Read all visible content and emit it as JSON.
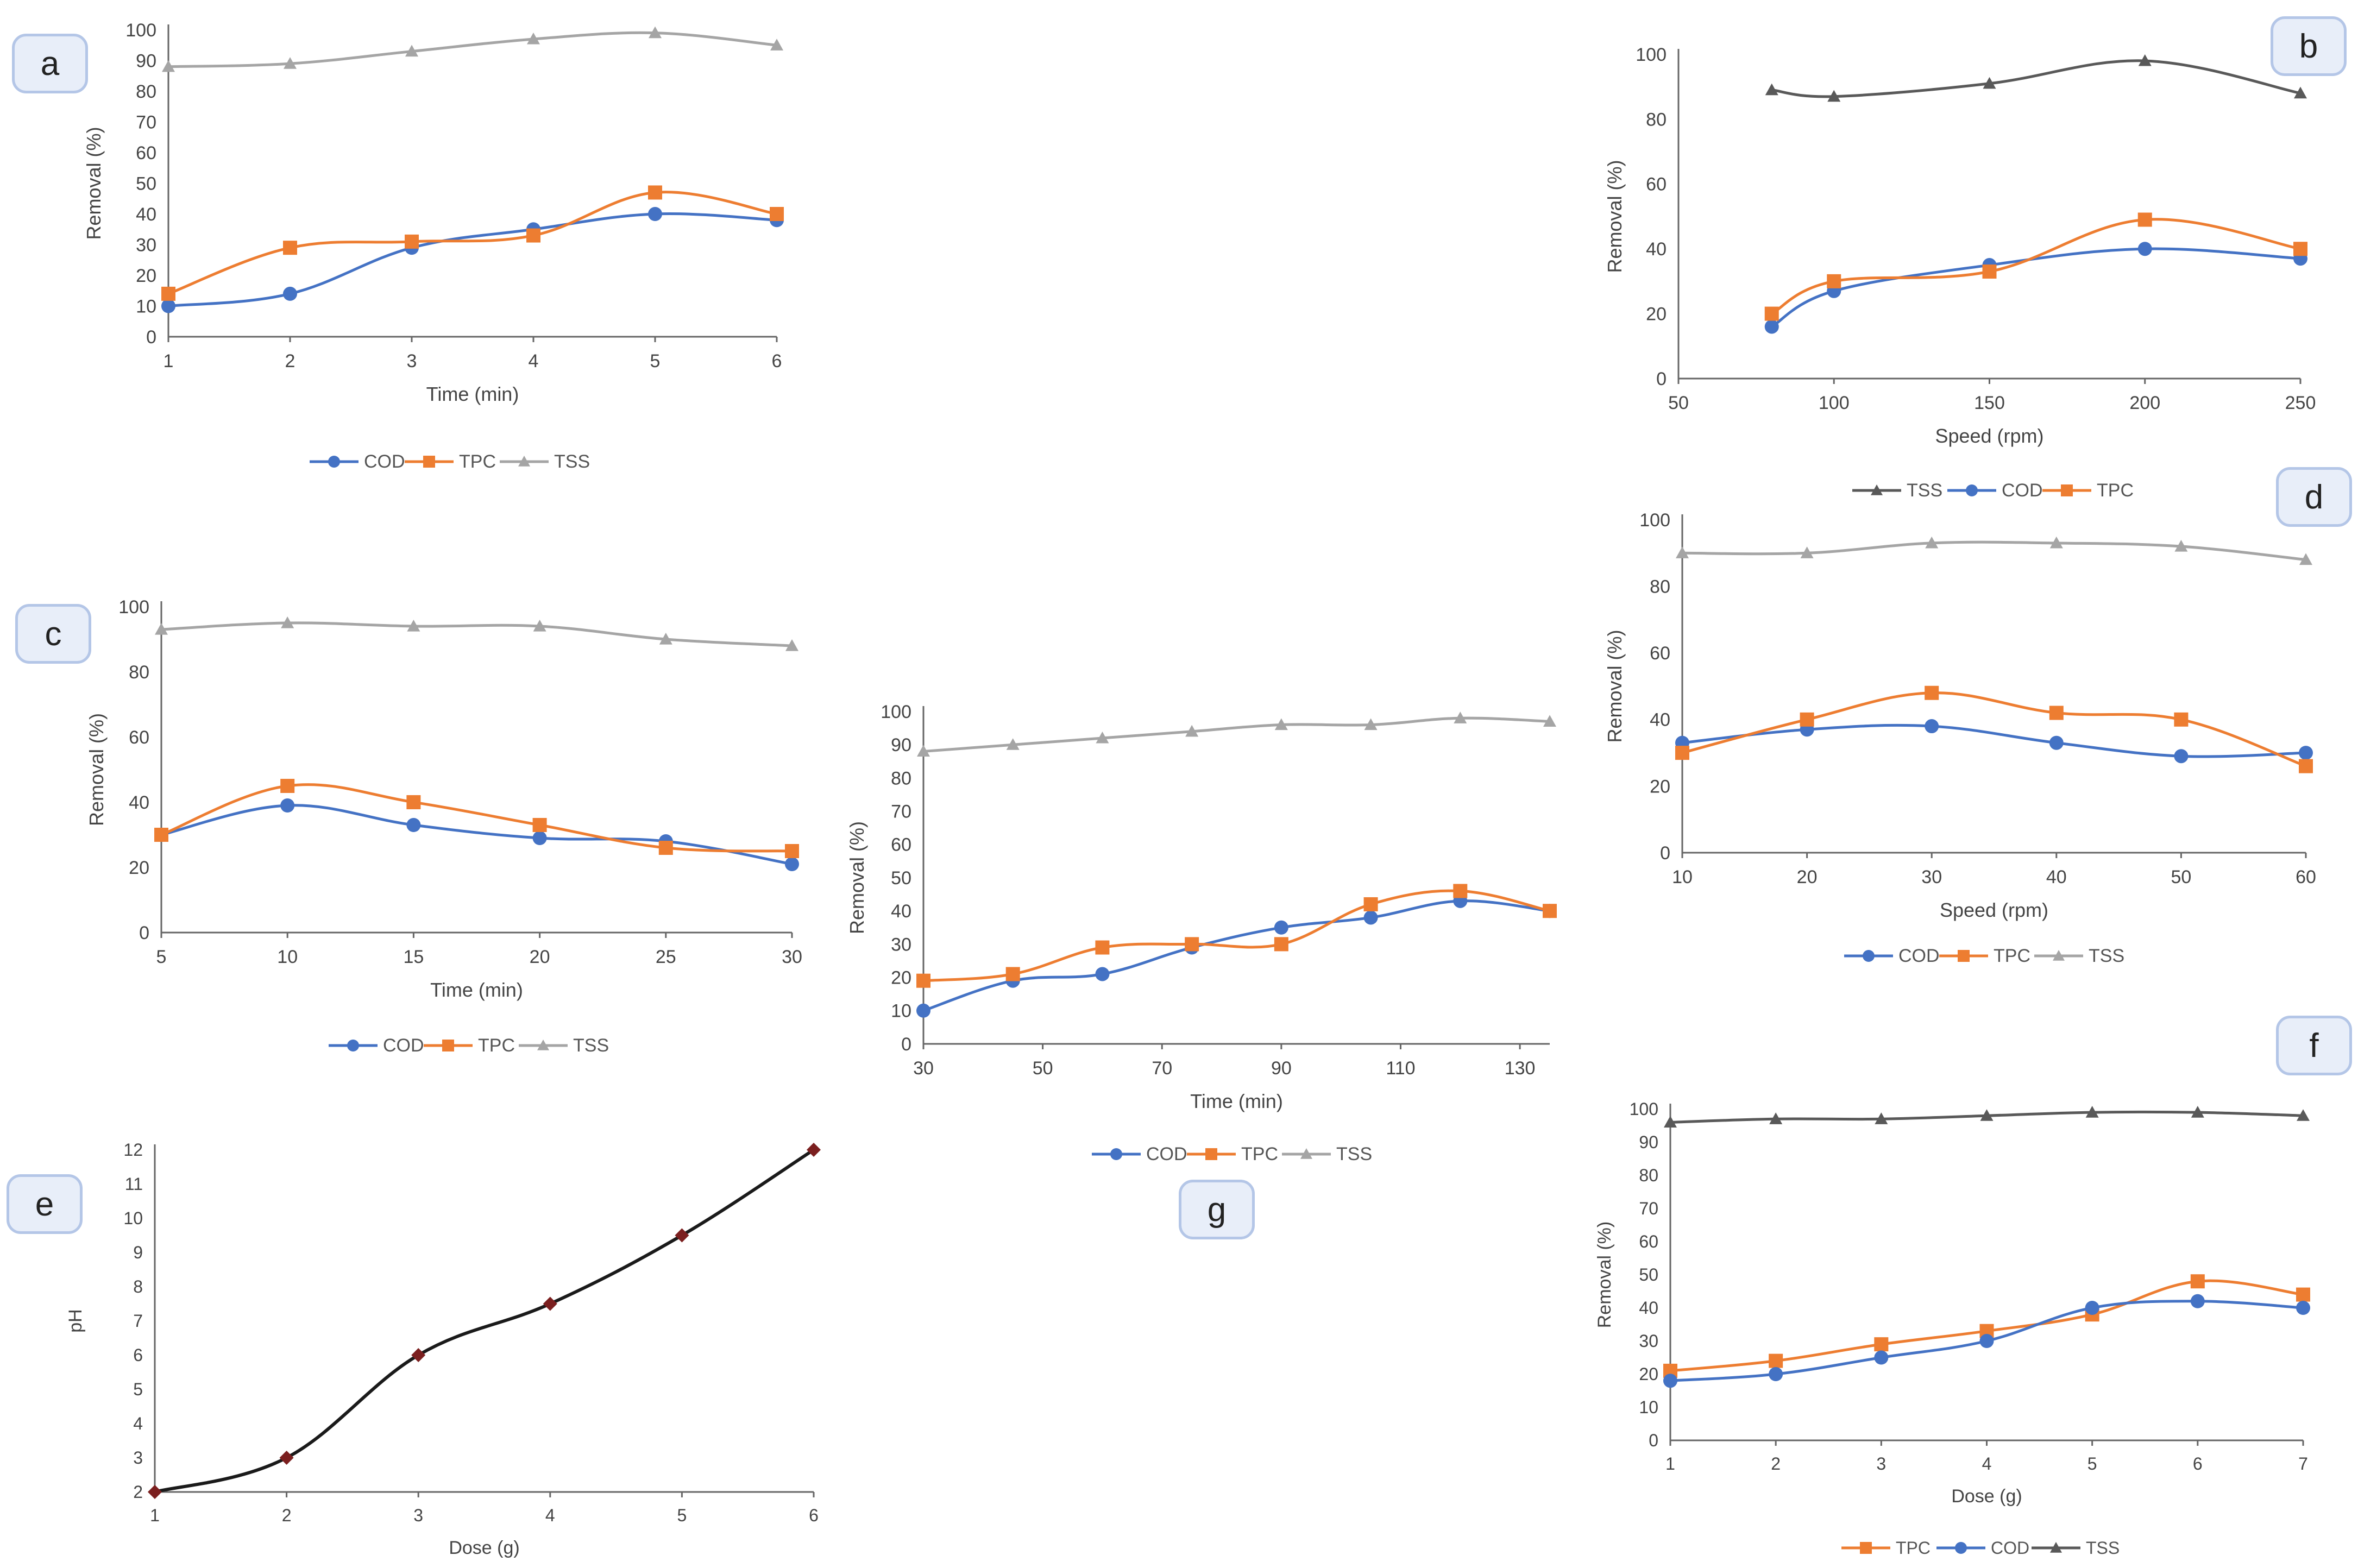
{
  "colors": {
    "COD": "#4472c4",
    "TPC": "#ed7d31",
    "TSS": "#a5a5a5",
    "TSS_dark": "#595959",
    "pH": "#1a1a1a",
    "pH_marker": "#7b1f1f"
  },
  "chart_data": [
    {
      "panel": "a",
      "type": "line",
      "xlabel": "Time (min)",
      "ylabel": "Removal (%)",
      "xlim": [
        1,
        6
      ],
      "ylim": [
        0,
        100
      ],
      "xticks": [
        1,
        2,
        3,
        4,
        5,
        6
      ],
      "yticks": [
        0,
        10,
        20,
        30,
        40,
        50,
        60,
        70,
        80,
        90,
        100
      ],
      "legend": [
        "COD",
        "TPC",
        "TSS"
      ],
      "legend_position": "bottom",
      "series": [
        {
          "name": "COD",
          "x": [
            1,
            2,
            3,
            4,
            5,
            6
          ],
          "values": [
            10,
            14,
            29,
            35,
            40,
            38
          ]
        },
        {
          "name": "TPC",
          "x": [
            1,
            2,
            3,
            4,
            5,
            6
          ],
          "values": [
            14,
            29,
            31,
            33,
            47,
            40
          ]
        },
        {
          "name": "TSS",
          "x": [
            1,
            2,
            3,
            4,
            5,
            6
          ],
          "values": [
            88,
            89,
            93,
            97,
            99,
            95
          ]
        }
      ]
    },
    {
      "panel": "b",
      "type": "line",
      "xlabel": "Speed (rpm)",
      "ylabel": "Removal (%)",
      "xlim": [
        50,
        250
      ],
      "ylim": [
        0,
        100
      ],
      "xticks": [
        50,
        100,
        150,
        200,
        250
      ],
      "yticks": [
        0,
        20,
        40,
        60,
        80,
        100
      ],
      "legend": [
        "TSS",
        "COD",
        "TPC"
      ],
      "legend_position": "bottom",
      "series": [
        {
          "name": "TSS",
          "x": [
            80,
            100,
            150,
            200,
            250
          ],
          "values": [
            89,
            87,
            91,
            98,
            88
          ]
        },
        {
          "name": "COD",
          "x": [
            80,
            100,
            150,
            200,
            250
          ],
          "values": [
            16,
            27,
            35,
            40,
            37
          ]
        },
        {
          "name": "TPC",
          "x": [
            80,
            100,
            150,
            200,
            250
          ],
          "values": [
            20,
            30,
            33,
            49,
            40
          ]
        }
      ]
    },
    {
      "panel": "c",
      "type": "line",
      "xlabel": "Time (min)",
      "ylabel": "Removal (%)",
      "xlim": [
        5,
        30
      ],
      "ylim": [
        0,
        100
      ],
      "xticks": [
        5,
        10,
        15,
        20,
        25,
        30
      ],
      "yticks": [
        0,
        20,
        40,
        60,
        80,
        100
      ],
      "legend": [
        "COD",
        "TPC",
        "TSS"
      ],
      "legend_position": "bottom",
      "series": [
        {
          "name": "COD",
          "x": [
            5,
            10,
            15,
            20,
            25,
            30
          ],
          "values": [
            30,
            39,
            33,
            29,
            28,
            21
          ]
        },
        {
          "name": "TPC",
          "x": [
            5,
            10,
            15,
            20,
            25,
            30
          ],
          "values": [
            30,
            45,
            40,
            33,
            26,
            25
          ]
        },
        {
          "name": "TSS",
          "x": [
            5,
            10,
            15,
            20,
            25,
            30
          ],
          "values": [
            93,
            95,
            94,
            94,
            90,
            88
          ]
        }
      ]
    },
    {
      "panel": "d",
      "type": "line",
      "xlabel": "Speed (rpm)",
      "ylabel": "Removal (%)",
      "xlim": [
        10,
        60
      ],
      "ylim": [
        0,
        100
      ],
      "xticks": [
        10,
        20,
        30,
        40,
        50,
        60
      ],
      "yticks": [
        0,
        20,
        40,
        60,
        80,
        100
      ],
      "legend": [
        "COD",
        "TPC",
        "TSS"
      ],
      "legend_position": "bottom",
      "series": [
        {
          "name": "COD",
          "x": [
            10,
            20,
            30,
            40,
            50,
            60
          ],
          "values": [
            33,
            37,
            38,
            33,
            29,
            30
          ]
        },
        {
          "name": "TPC",
          "x": [
            10,
            20,
            30,
            40,
            50,
            60
          ],
          "values": [
            30,
            40,
            48,
            42,
            40,
            26
          ]
        },
        {
          "name": "TSS",
          "x": [
            10,
            20,
            30,
            40,
            50,
            60
          ],
          "values": [
            90,
            90,
            93,
            93,
            92,
            88
          ]
        }
      ]
    },
    {
      "panel": "e",
      "type": "line",
      "xlabel": "Dose (g)",
      "ylabel": "pH",
      "xlim": [
        1,
        6
      ],
      "ylim": [
        2,
        12
      ],
      "xticks": [
        1,
        2,
        3,
        4,
        5,
        6
      ],
      "yticks": [
        2,
        3,
        4,
        5,
        6,
        7,
        8,
        9,
        10,
        11,
        12
      ],
      "legend": [],
      "legend_position": "none",
      "series": [
        {
          "name": "pH",
          "x": [
            1,
            2,
            3,
            4,
            5,
            6
          ],
          "values": [
            2,
            3,
            6,
            7.5,
            9.5,
            12
          ]
        }
      ]
    },
    {
      "panel": "f",
      "type": "line",
      "xlabel": "Dose (g)",
      "ylabel": "Removal (%)",
      "xlim": [
        1,
        7
      ],
      "ylim": [
        0,
        100
      ],
      "xticks": [
        1,
        2,
        3,
        4,
        5,
        6,
        7
      ],
      "yticks": [
        0,
        10,
        20,
        30,
        40,
        50,
        60,
        70,
        80,
        90,
        100
      ],
      "legend": [
        "TPC",
        "COD",
        "TSS"
      ],
      "legend_position": "bottom",
      "series": [
        {
          "name": "TPC",
          "x": [
            1,
            2,
            3,
            4,
            5,
            6,
            7
          ],
          "values": [
            21,
            24,
            29,
            33,
            38,
            48,
            44
          ]
        },
        {
          "name": "COD",
          "x": [
            1,
            2,
            3,
            4,
            5,
            6,
            7
          ],
          "values": [
            18,
            20,
            25,
            30,
            40,
            42,
            40
          ]
        },
        {
          "name": "TSS",
          "x": [
            1,
            2,
            3,
            4,
            5,
            6,
            7
          ],
          "values": [
            96,
            97,
            97,
            98,
            99,
            99,
            98
          ]
        }
      ]
    },
    {
      "panel": "g",
      "type": "line",
      "xlabel": "Time (min)",
      "ylabel": "Removal (%)",
      "xlim": [
        30,
        135
      ],
      "ylim": [
        0,
        100
      ],
      "xticks": [
        30,
        50,
        70,
        90,
        110,
        130
      ],
      "yticks": [
        0,
        10,
        20,
        30,
        40,
        50,
        60,
        70,
        80,
        90,
        100
      ],
      "legend": [
        "COD",
        "TPC",
        "TSS"
      ],
      "legend_position": "bottom",
      "series": [
        {
          "name": "COD",
          "x": [
            30,
            45,
            60,
            75,
            90,
            105,
            120,
            135
          ],
          "values": [
            10,
            19,
            21,
            29,
            35,
            38,
            43,
            40
          ]
        },
        {
          "name": "TPC",
          "x": [
            30,
            45,
            60,
            75,
            90,
            105,
            120,
            135
          ],
          "values": [
            19,
            21,
            29,
            30,
            30,
            42,
            46,
            40
          ]
        },
        {
          "name": "TSS",
          "x": [
            30,
            45,
            60,
            75,
            90,
            105,
            120,
            135
          ],
          "values": [
            88,
            90,
            92,
            94,
            96,
            96,
            98,
            97
          ]
        }
      ]
    }
  ]
}
